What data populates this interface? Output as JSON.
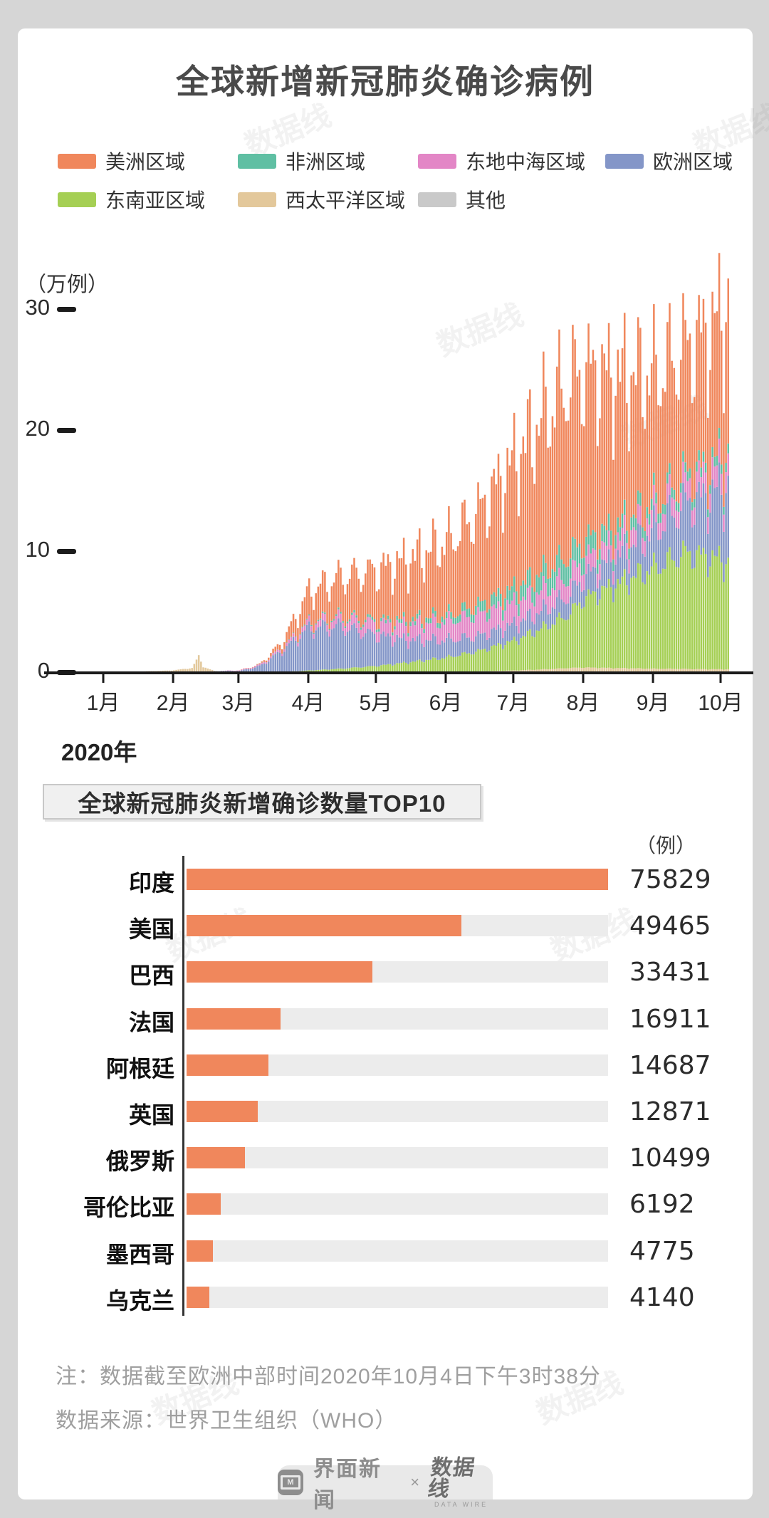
{
  "page": {
    "title": "全球新增新冠肺炎确诊病例",
    "year_label": "2020年",
    "watermark_text": "数据线"
  },
  "colors": {
    "americas": "#F0875C",
    "africa": "#5FBFA3",
    "east_mediterranean": "#E386C6",
    "europe": "#8496C8",
    "southeast_asia": "#A5CF54",
    "west_pacific": "#E3C89B",
    "other": "#C9C9C9",
    "top10_bar": "#F0875C",
    "top10_track": "#ECECEC"
  },
  "legend": {
    "rows": [
      [
        {
          "label": "美洲区域",
          "color": "#F0875C"
        },
        {
          "label": "非洲区域",
          "color": "#5FBFA3"
        },
        {
          "label": "东地中海区域",
          "color": "#E386C6"
        },
        {
          "label": "欧洲区域",
          "color": "#8496C8"
        }
      ],
      [
        {
          "label": "东南亚区域",
          "color": "#A5CF54"
        },
        {
          "label": "西太平洋区域",
          "color": "#E3C89B"
        },
        {
          "label": "其他",
          "color": "#C9C9C9"
        }
      ]
    ]
  },
  "chart_data": [
    {
      "type": "bar",
      "subtype": "stacked-daily",
      "title": "全球新增新冠肺炎确诊病例",
      "unit_label": "（万例）",
      "ylabel": "万例",
      "ylim": [
        0,
        33
      ],
      "yticks": [
        0,
        10,
        20,
        30
      ],
      "x_unit": "day_of_year_2020",
      "x_range": [
        1,
        278
      ],
      "months": [
        {
          "label": "1月",
          "day": 1
        },
        {
          "label": "2月",
          "day": 32
        },
        {
          "label": "3月",
          "day": 61
        },
        {
          "label": "4月",
          "day": 92
        },
        {
          "label": "5月",
          "day": 122
        },
        {
          "label": "6月",
          "day": 153
        },
        {
          "label": "7月",
          "day": 183
        },
        {
          "label": "8月",
          "day": 214
        },
        {
          "label": "9月",
          "day": 245
        },
        {
          "label": "10月",
          "day": 275
        }
      ],
      "year_label": "2020年",
      "keyframe_days": [
        1,
        31,
        40,
        43,
        45,
        50,
        61,
        70,
        80,
        92,
        106,
        122,
        136,
        153,
        167,
        183,
        197,
        207,
        214,
        228,
        245,
        259,
        268,
        275,
        278
      ],
      "series_stacked_bottom_to_top": [
        {
          "name": "西太平洋区域",
          "color": "#E3C89B",
          "weekly_sensitivity": 0.3,
          "values": [
            0.01,
            0.2,
            0.4,
            1.4,
            0.5,
            0.15,
            0.08,
            0.06,
            0.06,
            0.1,
            0.1,
            0.08,
            0.08,
            0.1,
            0.12,
            0.2,
            0.3,
            0.4,
            0.45,
            0.4,
            0.35,
            0.33,
            0.3,
            0.3,
            0.3
          ]
        },
        {
          "name": "东南亚区域",
          "color": "#A5CF54",
          "weekly_sensitivity": 0.5,
          "values": [
            0,
            0,
            0,
            0,
            0,
            0,
            0.005,
            0.01,
            0.02,
            0.1,
            0.25,
            0.5,
            0.8,
            1.2,
            1.7,
            2.5,
            3.6,
            4.5,
            5.8,
            7.0,
            8.5,
            9.8,
            9.5,
            9.2,
            9.0
          ]
        },
        {
          "name": "欧洲区域",
          "color": "#8496C8",
          "weekly_sensitivity": 0.85,
          "values": [
            0,
            0.005,
            0.005,
            0.005,
            0.005,
            0.01,
            0.08,
            0.5,
            1.8,
            3.6,
            3.6,
            2.6,
            1.9,
            1.5,
            1.3,
            1.4,
            1.5,
            1.6,
            1.8,
            2.2,
            3.2,
            4.2,
            5.0,
            6.0,
            6.5
          ]
        },
        {
          "name": "东地中海区域",
          "color": "#E386C6",
          "weekly_sensitivity": 0.5,
          "values": [
            0,
            0,
            0,
            0,
            0,
            0,
            0.05,
            0.1,
            0.2,
            0.45,
            0.7,
            1.0,
            1.3,
            1.6,
            1.8,
            1.8,
            1.7,
            1.6,
            1.5,
            1.4,
            1.5,
            1.6,
            1.7,
            1.8,
            1.8
          ]
        },
        {
          "name": "非洲区域",
          "color": "#5FBFA3",
          "weekly_sensitivity": 0.5,
          "values": [
            0,
            0,
            0,
            0,
            0,
            0,
            0,
            0.01,
            0.02,
            0.08,
            0.15,
            0.25,
            0.35,
            0.5,
            0.8,
            1.2,
            1.6,
            1.8,
            1.6,
            1.2,
            0.9,
            0.8,
            0.8,
            0.8,
            0.8
          ]
        },
        {
          "name": "美洲区域",
          "color": "#F0875C",
          "weekly_sensitivity": 1.0,
          "values": [
            0,
            0,
            0,
            0,
            0,
            0,
            0.01,
            0.05,
            0.5,
            2.6,
            3.4,
            4.3,
            5.2,
            6.3,
            8.0,
            11.0,
            13.5,
            15.0,
            14.5,
            13.0,
            11.0,
            11.0,
            11.5,
            12.0,
            13.0
          ]
        },
        {
          "name": "其他",
          "color": "#C9C9C9",
          "weekly_sensitivity": 0,
          "values": [
            0,
            0,
            0,
            0.01,
            0.01,
            0.005,
            0.005,
            0.005,
            0.01,
            0.01,
            0.01,
            0.01,
            0.01,
            0.01,
            0.01,
            0.01,
            0.01,
            0.01,
            0.01,
            0.01,
            0.01,
            0.01,
            0.01,
            0.01,
            0.01
          ]
        }
      ],
      "legend_position": "top",
      "grid": false
    },
    {
      "type": "bar",
      "orientation": "horizontal",
      "title": "全球新冠肺炎新增确诊数量TOP10",
      "unit_label": "（例）",
      "categories": [
        "印度",
        "美国",
        "巴西",
        "法国",
        "阿根廷",
        "英国",
        "俄罗斯",
        "哥伦比亚",
        "墨西哥",
        "乌克兰"
      ],
      "values": [
        75829,
        49465,
        33431,
        16911,
        14687,
        12871,
        10499,
        6192,
        4775,
        4140
      ],
      "xlim": [
        0,
        75829
      ],
      "bar_color": "#F0875C",
      "track_color": "#ECECEC"
    }
  ],
  "top10": {
    "heading": "全球新冠肺炎新增确诊数量TOP10",
    "unit_label": "（例）"
  },
  "notes": {
    "line1": "注：数据截至欧洲中部时间2020年10月4日下午3时38分",
    "line2": "数据来源：世界卫生组织（WHO）"
  },
  "footer": {
    "jiemian_label": "界面新闻",
    "jiemian_icon_glyph": "M",
    "separator": "×",
    "datawire_label": "数据线",
    "datawire_sub": "DATA WIRE"
  }
}
